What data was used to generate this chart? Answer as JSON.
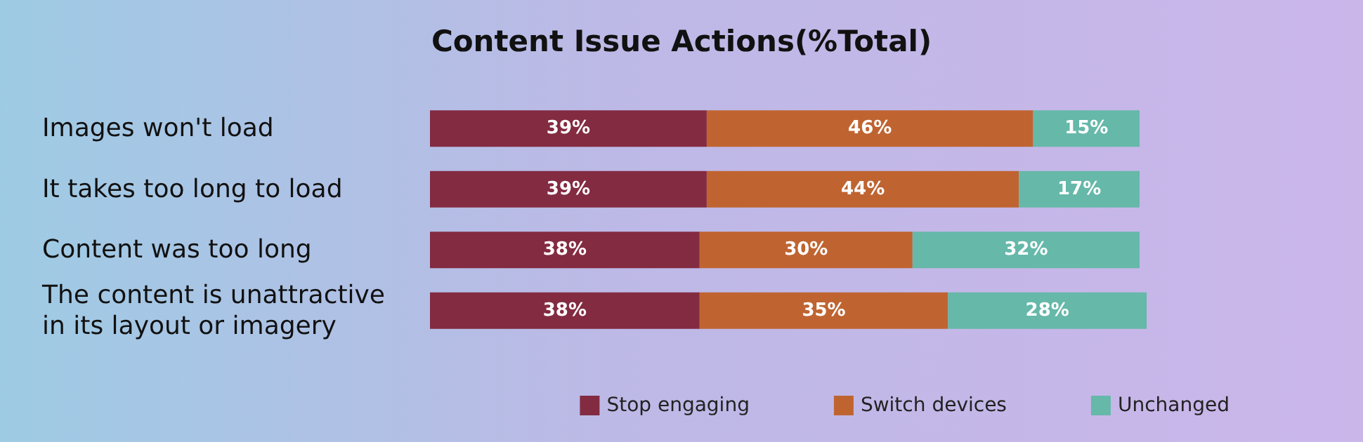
{
  "chart_data": {
    "type": "bar",
    "orientation": "horizontal",
    "stacked": true,
    "title": "Content Issue Actions(%Total)",
    "categories": [
      "Images won't load",
      "It takes too long to load",
      "Content was too long",
      "The content is unattractive in its layout or imagery"
    ],
    "series": [
      {
        "name": "Stop engaging",
        "color": "#832b41",
        "values": [
          39,
          39,
          38,
          38
        ],
        "value_labels": [
          "39%",
          "39%",
          "38%",
          "38%"
        ]
      },
      {
        "name": "Switch devices",
        "color": "#bf6431",
        "values": [
          46,
          44,
          30,
          35
        ],
        "value_labels": [
          "46%",
          "44%",
          "30%",
          "35%"
        ]
      },
      {
        "name": "Unchanged",
        "color": "#66b8a9",
        "values": [
          15,
          17,
          32,
          28
        ],
        "value_labels": [
          "15%",
          "17%",
          "32%",
          "28%"
        ]
      }
    ],
    "legend": "bottom right"
  }
}
